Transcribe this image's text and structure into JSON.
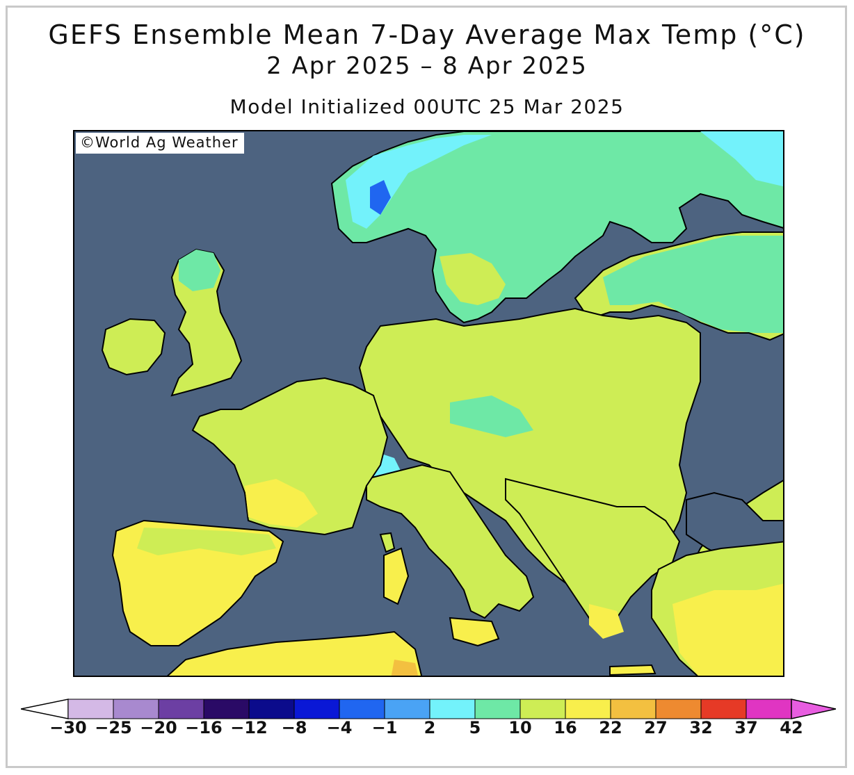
{
  "title": {
    "main": "GEFS Ensemble Mean 7-Day Average Max Temp (°C)",
    "dates": "2 Apr 2025 – 8 Apr 2025",
    "init": "Model Initialized 00UTC 25 Mar 2025"
  },
  "credit": "©World Ag Weather",
  "colors": {
    "ocean": "#4d6380",
    "border": "#000000",
    "frame": "#c9c9c9"
  },
  "legend": {
    "units": "°C",
    "ticks": [
      "-30",
      "-25",
      "-20",
      "-16",
      "-12",
      "-8",
      "-4",
      "-1",
      "2",
      "5",
      "10",
      "16",
      "22",
      "27",
      "32",
      "37",
      "42"
    ],
    "low_cap_color": "#ffffff",
    "high_cap_color": "#e85de0",
    "bins": [
      {
        "from": -30,
        "to": -25,
        "color": "#d4b9e6"
      },
      {
        "from": -25,
        "to": -20,
        "color": "#a889cf"
      },
      {
        "from": -20,
        "to": -16,
        "color": "#6c3fa3"
      },
      {
        "from": -16,
        "to": -12,
        "color": "#2a0a66"
      },
      {
        "from": -12,
        "to": -8,
        "color": "#0b0b8c"
      },
      {
        "from": -8,
        "to": -4,
        "color": "#0a18d6"
      },
      {
        "from": -4,
        "to": -1,
        "color": "#2066f0"
      },
      {
        "from": -1,
        "to": 2,
        "color": "#4aa3f5"
      },
      {
        "from": 2,
        "to": 5,
        "color": "#73f2fb"
      },
      {
        "from": 5,
        "to": 10,
        "color": "#6ee8a6"
      },
      {
        "from": 10,
        "to": 16,
        "color": "#ceed55"
      },
      {
        "from": 16,
        "to": 22,
        "color": "#f8ef4c"
      },
      {
        "from": 22,
        "to": 27,
        "color": "#f3c040"
      },
      {
        "from": 27,
        "to": 32,
        "color": "#ee8a30"
      },
      {
        "from": 32,
        "to": 37,
        "color": "#e63a26"
      },
      {
        "from": 37,
        "to": 42,
        "color": "#e035c2"
      }
    ]
  }
}
